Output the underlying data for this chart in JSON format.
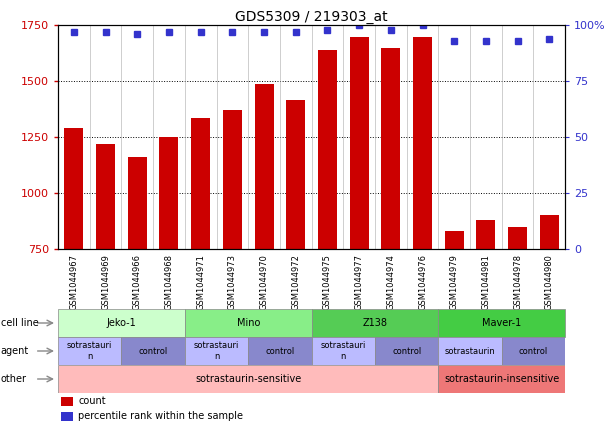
{
  "title": "GDS5309 / 219303_at",
  "samples": [
    "GSM1044967",
    "GSM1044969",
    "GSM1044966",
    "GSM1044968",
    "GSM1044971",
    "GSM1044973",
    "GSM1044970",
    "GSM1044972",
    "GSM1044975",
    "GSM1044977",
    "GSM1044974",
    "GSM1044976",
    "GSM1044979",
    "GSM1044981",
    "GSM1044978",
    "GSM1044980"
  ],
  "counts": [
    1290,
    1220,
    1160,
    1250,
    1335,
    1370,
    1490,
    1415,
    1640,
    1700,
    1650,
    1700,
    830,
    880,
    850,
    900
  ],
  "percentiles": [
    97,
    97,
    96,
    97,
    97,
    97,
    97,
    97,
    98,
    100,
    98,
    100,
    93,
    93,
    93,
    94
  ],
  "ylim_left": [
    750,
    1750
  ],
  "ylim_right": [
    0,
    100
  ],
  "yticks_left": [
    750,
    1000,
    1250,
    1500,
    1750
  ],
  "yticks_right": [
    0,
    25,
    50,
    75,
    100
  ],
  "gridlines": [
    1000,
    1250,
    1500
  ],
  "bar_color": "#cc0000",
  "dot_color": "#3333cc",
  "cell_lines": [
    {
      "label": "Jeko-1",
      "start": 0,
      "end": 4,
      "color": "#ccffcc"
    },
    {
      "label": "Mino",
      "start": 4,
      "end": 8,
      "color": "#88ee88"
    },
    {
      "label": "Z138",
      "start": 8,
      "end": 12,
      "color": "#55cc55"
    },
    {
      "label": "Maver-1",
      "start": 12,
      "end": 16,
      "color": "#44cc44"
    }
  ],
  "agents": [
    {
      "label": "sotrastauri\nn",
      "start": 0,
      "end": 2,
      "color": "#bbbbff"
    },
    {
      "label": "control",
      "start": 2,
      "end": 4,
      "color": "#8888cc"
    },
    {
      "label": "sotrastauri\nn",
      "start": 4,
      "end": 6,
      "color": "#bbbbff"
    },
    {
      "label": "control",
      "start": 6,
      "end": 8,
      "color": "#8888cc"
    },
    {
      "label": "sotrastauri\nn",
      "start": 8,
      "end": 10,
      "color": "#bbbbff"
    },
    {
      "label": "control",
      "start": 10,
      "end": 12,
      "color": "#8888cc"
    },
    {
      "label": "sotrastaurin",
      "start": 12,
      "end": 14,
      "color": "#bbbbff"
    },
    {
      "label": "control",
      "start": 14,
      "end": 16,
      "color": "#8888cc"
    }
  ],
  "other_groups": [
    {
      "label": "sotrastaurin-sensitive",
      "start": 0,
      "end": 12,
      "color": "#ffbbbb"
    },
    {
      "label": "sotrastaurin-insensitive",
      "start": 12,
      "end": 16,
      "color": "#ee7777"
    }
  ],
  "row_labels": [
    "cell line",
    "agent",
    "other"
  ],
  "legend_count_label": "count",
  "legend_pct_label": "percentile rank within the sample",
  "background_color": "#ffffff",
  "title_fontsize": 10,
  "bar_tick_fontsize": 8,
  "xtick_fontsize": 6,
  "annot_fontsize": 7,
  "row_label_fontsize": 7,
  "legend_fontsize": 7
}
